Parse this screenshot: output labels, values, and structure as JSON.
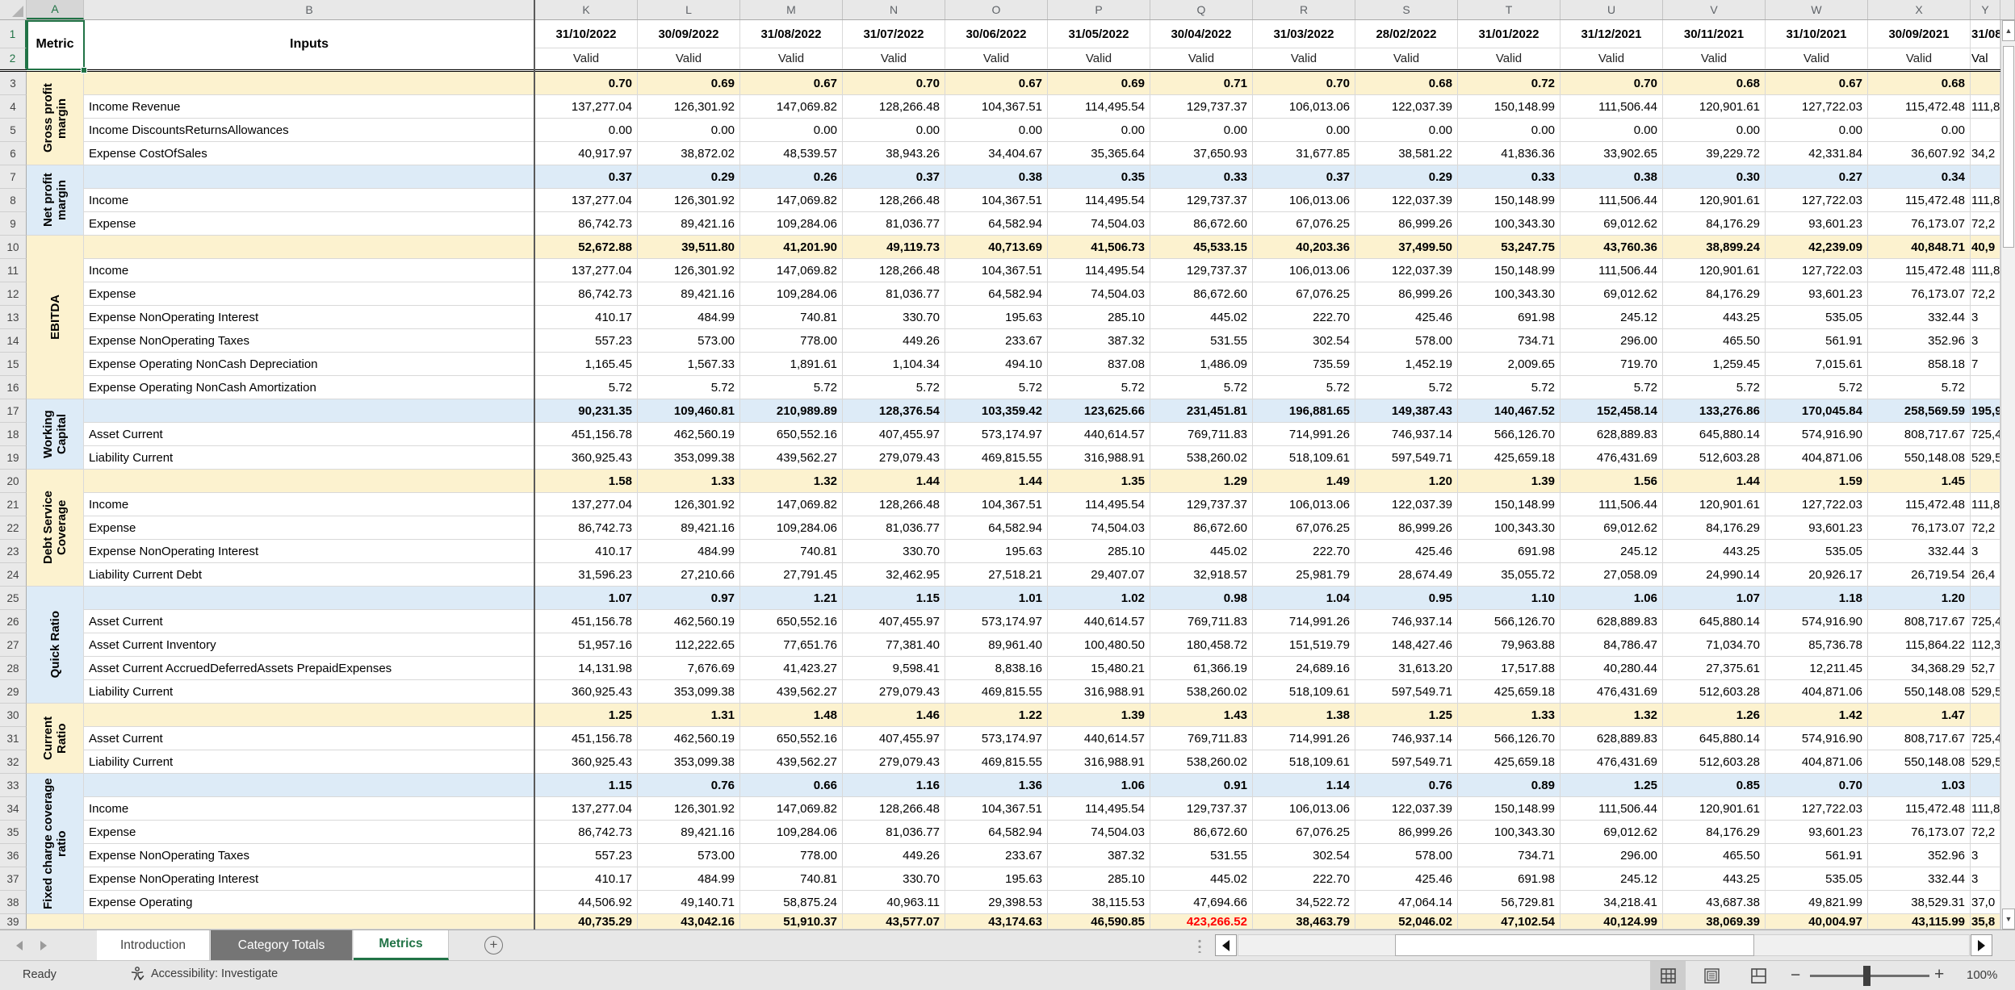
{
  "colors": {
    "accent_green": "#217346",
    "band_yellow": "#FCF2CF",
    "band_blue": "#DDEBF7",
    "red_value": "#FF0000",
    "tab_dark": "#757575"
  },
  "columns": {
    "gutter_corner": "",
    "left_letters": [
      "A",
      "B"
    ],
    "data_letters": [
      "K",
      "L",
      "M",
      "N",
      "O",
      "P",
      "Q",
      "R",
      "S",
      "T",
      "U",
      "V",
      "W",
      "X"
    ],
    "partial_letter": "Y"
  },
  "header": {
    "metric_label": "Metric",
    "inputs_label": "Inputs",
    "row_numbers": [
      "1",
      "2"
    ],
    "dates": [
      "31/10/2022",
      "30/09/2022",
      "31/08/2022",
      "31/07/2022",
      "30/06/2022",
      "31/05/2022",
      "30/04/2022",
      "31/03/2022",
      "28/02/2022",
      "31/01/2022",
      "31/12/2021",
      "30/11/2021",
      "31/10/2021",
      "30/09/2021"
    ],
    "date_partial": "31/08/",
    "valid_label": "Valid",
    "valid_partial": "Val"
  },
  "first_data_row_number": 3,
  "blocks": [
    {
      "metric": "Gross profit margin",
      "tint": "yellow",
      "rows": [
        {
          "label": "",
          "summary": true,
          "values": [
            "0.70",
            "0.69",
            "0.67",
            "0.70",
            "0.67",
            "0.69",
            "0.71",
            "0.70",
            "0.68",
            "0.72",
            "0.70",
            "0.68",
            "0.67",
            "0.68"
          ],
          "partial": ""
        },
        {
          "label": "Income Revenue",
          "summary": false,
          "values": [
            "137,277.04",
            "126,301.92",
            "147,069.82",
            "128,266.48",
            "104,367.51",
            "114,495.54",
            "129,737.37",
            "106,013.06",
            "122,037.39",
            "150,148.99",
            "111,506.44",
            "120,901.61",
            "127,722.03",
            "115,472.48"
          ],
          "partial": "111,8"
        },
        {
          "label": "Income DiscountsReturnsAllowances",
          "summary": false,
          "values": [
            "0.00",
            "0.00",
            "0.00",
            "0.00",
            "0.00",
            "0.00",
            "0.00",
            "0.00",
            "0.00",
            "0.00",
            "0.00",
            "0.00",
            "0.00",
            "0.00"
          ],
          "partial": ""
        },
        {
          "label": "Expense CostOfSales",
          "summary": false,
          "values": [
            "40,917.97",
            "38,872.02",
            "48,539.57",
            "38,943.26",
            "34,404.67",
            "35,365.64",
            "37,650.93",
            "31,677.85",
            "38,581.22",
            "41,836.36",
            "33,902.65",
            "39,229.72",
            "42,331.84",
            "36,607.92"
          ],
          "partial": "34,2"
        }
      ]
    },
    {
      "metric": "Net profit margin",
      "tint": "blue",
      "rows": [
        {
          "label": "",
          "summary": true,
          "values": [
            "0.37",
            "0.29",
            "0.26",
            "0.37",
            "0.38",
            "0.35",
            "0.33",
            "0.37",
            "0.29",
            "0.33",
            "0.38",
            "0.30",
            "0.27",
            "0.34"
          ],
          "partial": ""
        },
        {
          "label": "Income",
          "summary": false,
          "values": [
            "137,277.04",
            "126,301.92",
            "147,069.82",
            "128,266.48",
            "104,367.51",
            "114,495.54",
            "129,737.37",
            "106,013.06",
            "122,037.39",
            "150,148.99",
            "111,506.44",
            "120,901.61",
            "127,722.03",
            "115,472.48"
          ],
          "partial": "111,8"
        },
        {
          "label": "Expense",
          "summary": false,
          "values": [
            "86,742.73",
            "89,421.16",
            "109,284.06",
            "81,036.77",
            "64,582.94",
            "74,504.03",
            "86,672.60",
            "67,076.25",
            "86,999.26",
            "100,343.30",
            "69,012.62",
            "84,176.29",
            "93,601.23",
            "76,173.07"
          ],
          "partial": "72,2"
        }
      ]
    },
    {
      "metric": "EBITDA",
      "tint": "yellow",
      "rows": [
        {
          "label": "",
          "summary": true,
          "values": [
            "52,672.88",
            "39,511.80",
            "41,201.90",
            "49,119.73",
            "40,713.69",
            "41,506.73",
            "45,533.15",
            "40,203.36",
            "37,499.50",
            "53,247.75",
            "43,760.36",
            "38,899.24",
            "42,239.09",
            "40,848.71"
          ],
          "partial": "40,9"
        },
        {
          "label": "Income",
          "summary": false,
          "values": [
            "137,277.04",
            "126,301.92",
            "147,069.82",
            "128,266.48",
            "104,367.51",
            "114,495.54",
            "129,737.37",
            "106,013.06",
            "122,037.39",
            "150,148.99",
            "111,506.44",
            "120,901.61",
            "127,722.03",
            "115,472.48"
          ],
          "partial": "111,8"
        },
        {
          "label": "Expense",
          "summary": false,
          "values": [
            "86,742.73",
            "89,421.16",
            "109,284.06",
            "81,036.77",
            "64,582.94",
            "74,504.03",
            "86,672.60",
            "67,076.25",
            "86,999.26",
            "100,343.30",
            "69,012.62",
            "84,176.29",
            "93,601.23",
            "76,173.07"
          ],
          "partial": "72,2"
        },
        {
          "label": "Expense NonOperating Interest",
          "summary": false,
          "values": [
            "410.17",
            "484.99",
            "740.81",
            "330.70",
            "195.63",
            "285.10",
            "445.02",
            "222.70",
            "425.46",
            "691.98",
            "245.12",
            "443.25",
            "535.05",
            "332.44"
          ],
          "partial": "3"
        },
        {
          "label": "Expense NonOperating Taxes",
          "summary": false,
          "values": [
            "557.23",
            "573.00",
            "778.00",
            "449.26",
            "233.67",
            "387.32",
            "531.55",
            "302.54",
            "578.00",
            "734.71",
            "296.00",
            "465.50",
            "561.91",
            "352.96"
          ],
          "partial": "3"
        },
        {
          "label": "Expense Operating NonCash Depreciation",
          "summary": false,
          "values": [
            "1,165.45",
            "1,567.33",
            "1,891.61",
            "1,104.34",
            "494.10",
            "837.08",
            "1,486.09",
            "735.59",
            "1,452.19",
            "2,009.65",
            "719.70",
            "1,259.45",
            "7,015.61",
            "858.18"
          ],
          "partial": "7"
        },
        {
          "label": "Expense Operating NonCash Amortization",
          "summary": false,
          "values": [
            "5.72",
            "5.72",
            "5.72",
            "5.72",
            "5.72",
            "5.72",
            "5.72",
            "5.72",
            "5.72",
            "5.72",
            "5.72",
            "5.72",
            "5.72",
            "5.72"
          ],
          "partial": ""
        }
      ]
    },
    {
      "metric": "Working Capital",
      "tint": "blue",
      "rows": [
        {
          "label": "",
          "summary": true,
          "values": [
            "90,231.35",
            "109,460.81",
            "210,989.89",
            "128,376.54",
            "103,359.42",
            "123,625.66",
            "231,451.81",
            "196,881.65",
            "149,387.43",
            "140,467.52",
            "152,458.14",
            "133,276.86",
            "170,045.84",
            "258,569.59"
          ],
          "partial": "195,9"
        },
        {
          "label": "Asset Current",
          "summary": false,
          "values": [
            "451,156.78",
            "462,560.19",
            "650,552.16",
            "407,455.97",
            "573,174.97",
            "440,614.57",
            "769,711.83",
            "714,991.26",
            "746,937.14",
            "566,126.70",
            "628,889.83",
            "645,880.14",
            "574,916.90",
            "808,717.67"
          ],
          "partial": "725,4"
        },
        {
          "label": "Liability Current",
          "summary": false,
          "values": [
            "360,925.43",
            "353,099.38",
            "439,562.27",
            "279,079.43",
            "469,815.55",
            "316,988.91",
            "538,260.02",
            "518,109.61",
            "597,549.71",
            "425,659.18",
            "476,431.69",
            "512,603.28",
            "404,871.06",
            "550,148.08"
          ],
          "partial": "529,5"
        }
      ]
    },
    {
      "metric": "Debt Service Coverage",
      "tint": "yellow",
      "rows": [
        {
          "label": "",
          "summary": true,
          "values": [
            "1.58",
            "1.33",
            "1.32",
            "1.44",
            "1.44",
            "1.35",
            "1.29",
            "1.49",
            "1.20",
            "1.39",
            "1.56",
            "1.44",
            "1.59",
            "1.45"
          ],
          "partial": ""
        },
        {
          "label": "Income",
          "summary": false,
          "values": [
            "137,277.04",
            "126,301.92",
            "147,069.82",
            "128,266.48",
            "104,367.51",
            "114,495.54",
            "129,737.37",
            "106,013.06",
            "122,037.39",
            "150,148.99",
            "111,506.44",
            "120,901.61",
            "127,722.03",
            "115,472.48"
          ],
          "partial": "111,8"
        },
        {
          "label": "Expense",
          "summary": false,
          "values": [
            "86,742.73",
            "89,421.16",
            "109,284.06",
            "81,036.77",
            "64,582.94",
            "74,504.03",
            "86,672.60",
            "67,076.25",
            "86,999.26",
            "100,343.30",
            "69,012.62",
            "84,176.29",
            "93,601.23",
            "76,173.07"
          ],
          "partial": "72,2"
        },
        {
          "label": "Expense NonOperating Interest",
          "summary": false,
          "values": [
            "410.17",
            "484.99",
            "740.81",
            "330.70",
            "195.63",
            "285.10",
            "445.02",
            "222.70",
            "425.46",
            "691.98",
            "245.12",
            "443.25",
            "535.05",
            "332.44"
          ],
          "partial": "3"
        },
        {
          "label": "Liability Current Debt",
          "summary": false,
          "values": [
            "31,596.23",
            "27,210.66",
            "27,791.45",
            "32,462.95",
            "27,518.21",
            "29,407.07",
            "32,918.57",
            "25,981.79",
            "28,674.49",
            "35,055.72",
            "27,058.09",
            "24,990.14",
            "20,926.17",
            "26,719.54"
          ],
          "partial": "26,4"
        }
      ]
    },
    {
      "metric": "Quick Ratio",
      "tint": "blue",
      "rows": [
        {
          "label": "",
          "summary": true,
          "values": [
            "1.07",
            "0.97",
            "1.21",
            "1.15",
            "1.01",
            "1.02",
            "0.98",
            "1.04",
            "0.95",
            "1.10",
            "1.06",
            "1.07",
            "1.18",
            "1.20"
          ],
          "partial": ""
        },
        {
          "label": "Asset Current",
          "summary": false,
          "values": [
            "451,156.78",
            "462,560.19",
            "650,552.16",
            "407,455.97",
            "573,174.97",
            "440,614.57",
            "769,711.83",
            "714,991.26",
            "746,937.14",
            "566,126.70",
            "628,889.83",
            "645,880.14",
            "574,916.90",
            "808,717.67"
          ],
          "partial": "725,4"
        },
        {
          "label": "Asset Current Inventory",
          "summary": false,
          "values": [
            "51,957.16",
            "112,222.65",
            "77,651.76",
            "77,381.40",
            "89,961.40",
            "100,480.50",
            "180,458.72",
            "151,519.79",
            "148,427.46",
            "79,963.88",
            "84,786.47",
            "71,034.70",
            "85,736.78",
            "115,864.22"
          ],
          "partial": "112,3"
        },
        {
          "label": "Asset Current AccruedDeferredAssets PrepaidExpenses",
          "summary": false,
          "values": [
            "14,131.98",
            "7,676.69",
            "41,423.27",
            "9,598.41",
            "8,838.16",
            "15,480.21",
            "61,366.19",
            "24,689.16",
            "31,613.20",
            "17,517.88",
            "40,280.44",
            "27,375.61",
            "12,211.45",
            "34,368.29"
          ],
          "partial": "52,7"
        },
        {
          "label": "Liability Current",
          "summary": false,
          "values": [
            "360,925.43",
            "353,099.38",
            "439,562.27",
            "279,079.43",
            "469,815.55",
            "316,988.91",
            "538,260.02",
            "518,109.61",
            "597,549.71",
            "425,659.18",
            "476,431.69",
            "512,603.28",
            "404,871.06",
            "550,148.08"
          ],
          "partial": "529,5"
        }
      ]
    },
    {
      "metric": "Current Ratio",
      "tint": "yellow",
      "rows": [
        {
          "label": "",
          "summary": true,
          "values": [
            "1.25",
            "1.31",
            "1.48",
            "1.46",
            "1.22",
            "1.39",
            "1.43",
            "1.38",
            "1.25",
            "1.33",
            "1.32",
            "1.26",
            "1.42",
            "1.47"
          ],
          "partial": ""
        },
        {
          "label": "Asset Current",
          "summary": false,
          "values": [
            "451,156.78",
            "462,560.19",
            "650,552.16",
            "407,455.97",
            "573,174.97",
            "440,614.57",
            "769,711.83",
            "714,991.26",
            "746,937.14",
            "566,126.70",
            "628,889.83",
            "645,880.14",
            "574,916.90",
            "808,717.67"
          ],
          "partial": "725,4"
        },
        {
          "label": "Liability Current",
          "summary": false,
          "values": [
            "360,925.43",
            "353,099.38",
            "439,562.27",
            "279,079.43",
            "469,815.55",
            "316,988.91",
            "538,260.02",
            "518,109.61",
            "597,549.71",
            "425,659.18",
            "476,431.69",
            "512,603.28",
            "404,871.06",
            "550,148.08"
          ],
          "partial": "529,5"
        }
      ]
    },
    {
      "metric": "Fixed charge coverage ratio",
      "tint": "blue",
      "rows": [
        {
          "label": "",
          "summary": true,
          "values": [
            "1.15",
            "0.76",
            "0.66",
            "1.16",
            "1.36",
            "1.06",
            "0.91",
            "1.14",
            "0.76",
            "0.89",
            "1.25",
            "0.85",
            "0.70",
            "1.03"
          ],
          "partial": ""
        },
        {
          "label": "Income",
          "summary": false,
          "values": [
            "137,277.04",
            "126,301.92",
            "147,069.82",
            "128,266.48",
            "104,367.51",
            "114,495.54",
            "129,737.37",
            "106,013.06",
            "122,037.39",
            "150,148.99",
            "111,506.44",
            "120,901.61",
            "127,722.03",
            "115,472.48"
          ],
          "partial": "111,8"
        },
        {
          "label": "Expense",
          "summary": false,
          "values": [
            "86,742.73",
            "89,421.16",
            "109,284.06",
            "81,036.77",
            "64,582.94",
            "74,504.03",
            "86,672.60",
            "67,076.25",
            "86,999.26",
            "100,343.30",
            "69,012.62",
            "84,176.29",
            "93,601.23",
            "76,173.07"
          ],
          "partial": "72,2"
        },
        {
          "label": "Expense NonOperating Taxes",
          "summary": false,
          "values": [
            "557.23",
            "573.00",
            "778.00",
            "449.26",
            "233.67",
            "387.32",
            "531.55",
            "302.54",
            "578.00",
            "734.71",
            "296.00",
            "465.50",
            "561.91",
            "352.96"
          ],
          "partial": "3"
        },
        {
          "label": "Expense NonOperating Interest",
          "summary": false,
          "values": [
            "410.17",
            "484.99",
            "740.81",
            "330.70",
            "195.63",
            "285.10",
            "445.02",
            "222.70",
            "425.46",
            "691.98",
            "245.12",
            "443.25",
            "535.05",
            "332.44"
          ],
          "partial": "3"
        },
        {
          "label": "Expense Operating",
          "summary": false,
          "values": [
            "44,506.92",
            "49,140.71",
            "58,875.24",
            "40,963.11",
            "29,398.53",
            "38,115.53",
            "47,694.66",
            "34,522.72",
            "47,064.14",
            "56,729.81",
            "34,218.41",
            "43,687.38",
            "49,821.99",
            "38,529.31"
          ],
          "partial": "37,0"
        }
      ]
    }
  ],
  "partial_row": {
    "tint": "yellow",
    "values": [
      "40,735.29",
      "43,042.16",
      "51,910.37",
      "43,577.07",
      "43,174.63",
      "46,590.85",
      "423,266.52",
      "38,463.79",
      "52,046.02",
      "47,102.54",
      "40,124.99",
      "38,069.39",
      "40,004.97",
      "43,115.99"
    ],
    "red_index": 6,
    "partial": "35,8"
  },
  "sheet_tabs": {
    "items": [
      {
        "label": "Introduction",
        "variant": "normal"
      },
      {
        "label": "Category Totals",
        "variant": "dark"
      },
      {
        "label": "Metrics",
        "variant": "active"
      }
    ],
    "add_button": "+"
  },
  "statusbar": {
    "ready": "Ready",
    "accessibility": "Accessibility: Investigate",
    "zoom_out": "−",
    "zoom_in": "+",
    "zoom_level": "100%"
  }
}
